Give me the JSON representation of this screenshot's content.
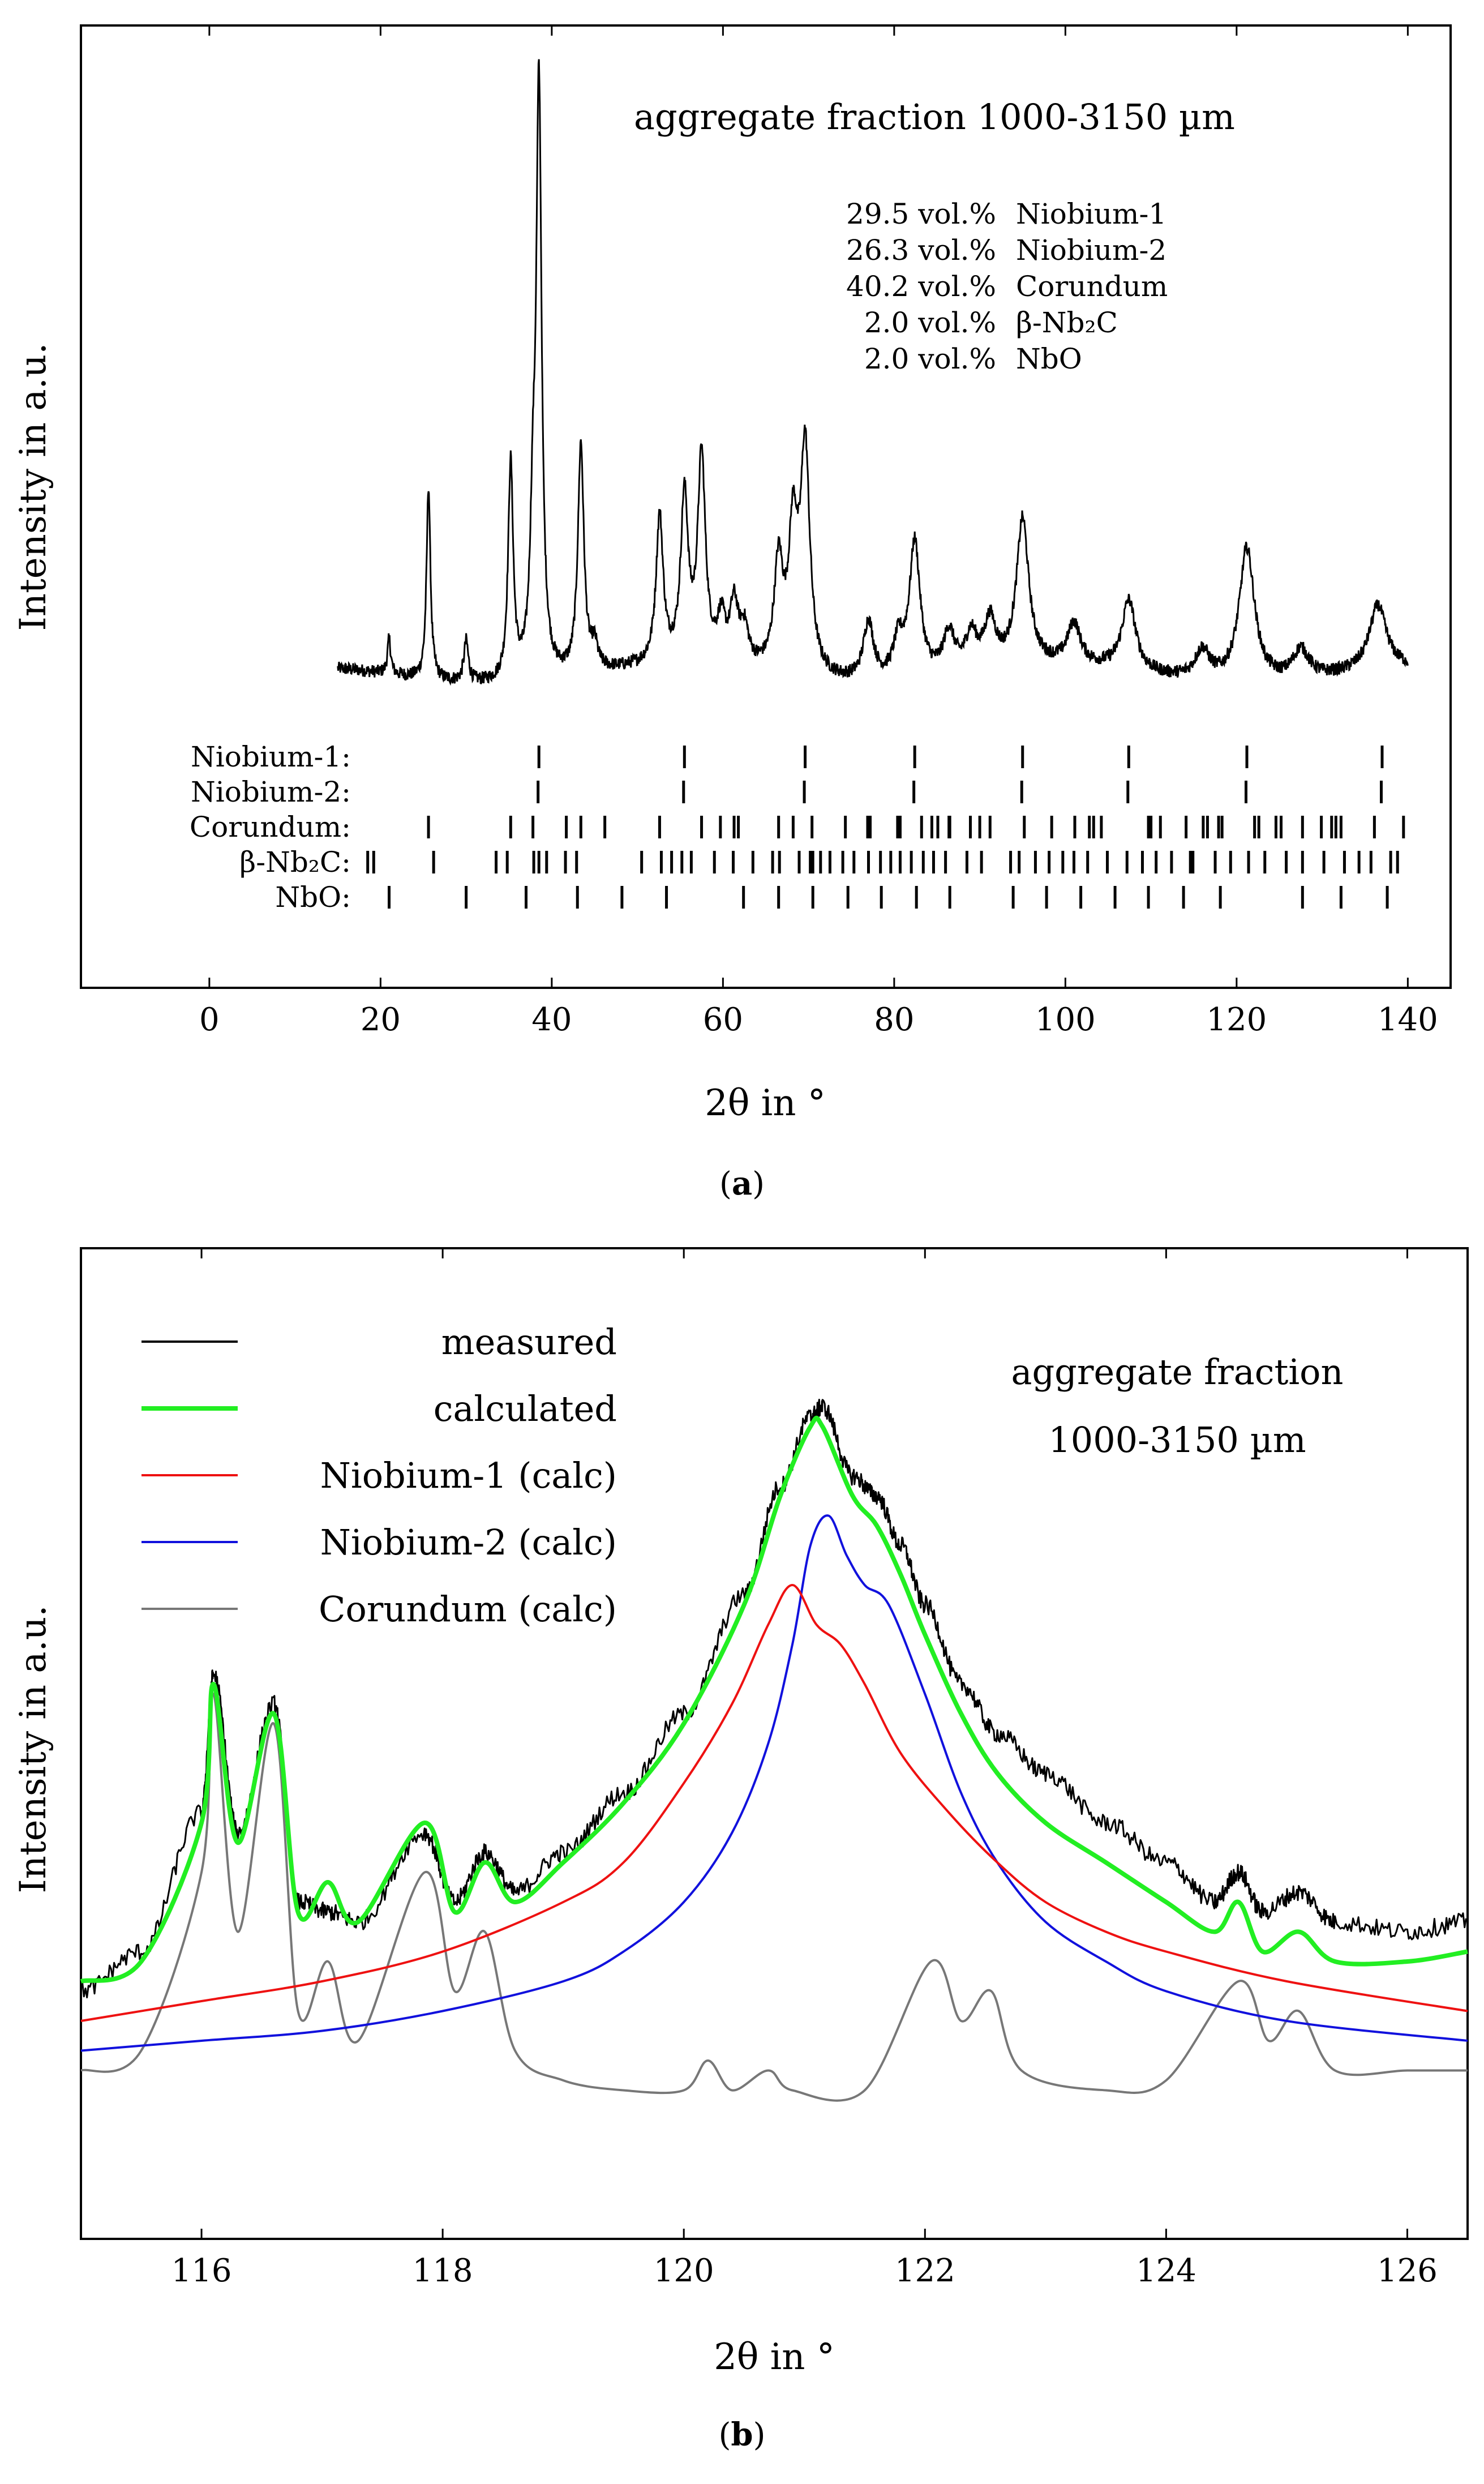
{
  "chart_data": [
    {
      "panel": "a",
      "type": "line",
      "caption_letter": "a",
      "annotation": "aggregate fraction 1000-3150 µm",
      "xlabel": "2θ in °",
      "ylabel": "Intensity in a.u.",
      "xlim": [
        -15,
        145
      ],
      "xticks": [
        0,
        20,
        40,
        60,
        80,
        100,
        120,
        140
      ],
      "x_range_measured": [
        15,
        140
      ],
      "composition": [
        {
          "value": "29.5 vol.%",
          "phase": "Niobium-1"
        },
        {
          "value": "26.3 vol.%",
          "phase": "Niobium-2"
        },
        {
          "value": "40.2 vol.%",
          "phase": "Corundum"
        },
        {
          "value": "2.0 vol.%",
          "phase": "β-Nb₂C"
        },
        {
          "value": "2.0 vol.%",
          "phase": "NbO"
        }
      ],
      "peaks": [
        {
          "x": 21.0,
          "h": 0.06
        },
        {
          "x": 25.6,
          "h": 0.33
        },
        {
          "x": 30.0,
          "h": 0.07
        },
        {
          "x": 35.2,
          "h": 0.37
        },
        {
          "x": 37.8,
          "h": 0.22
        },
        {
          "x": 38.5,
          "h": 1.0
        },
        {
          "x": 43.4,
          "h": 0.39
        },
        {
          "x": 45.0,
          "h": 0.04
        },
        {
          "x": 52.6,
          "h": 0.25
        },
        {
          "x": 55.5,
          "h": 0.28
        },
        {
          "x": 57.5,
          "h": 0.35
        },
        {
          "x": 59.8,
          "h": 0.07
        },
        {
          "x": 61.3,
          "h": 0.1
        },
        {
          "x": 62.5,
          "h": 0.06
        },
        {
          "x": 66.5,
          "h": 0.18
        },
        {
          "x": 68.2,
          "h": 0.23
        },
        {
          "x": 69.6,
          "h": 0.38
        },
        {
          "x": 77.0,
          "h": 0.1
        },
        {
          "x": 80.5,
          "h": 0.06
        },
        {
          "x": 82.4,
          "h": 0.23
        },
        {
          "x": 86.4,
          "h": 0.07
        },
        {
          "x": 89.0,
          "h": 0.06
        },
        {
          "x": 91.2,
          "h": 0.08
        },
        {
          "x": 95.0,
          "h": 0.25
        },
        {
          "x": 101.0,
          "h": 0.07
        },
        {
          "x": 107.4,
          "h": 0.12
        },
        {
          "x": 116.0,
          "h": 0.05
        },
        {
          "x": 121.2,
          "h": 0.23
        },
        {
          "x": 127.5,
          "h": 0.05
        },
        {
          "x": 136.5,
          "h": 0.11
        }
      ],
      "reflections": [
        {
          "name": "Niobium-1:",
          "positions": [
            38.5,
            55.5,
            69.6,
            82.4,
            95.0,
            107.4,
            121.2,
            137.0
          ]
        },
        {
          "name": "Niobium-2:",
          "positions": [
            38.4,
            55.4,
            69.5,
            82.3,
            94.9,
            107.3,
            121.1,
            136.9
          ]
        },
        {
          "name": "Corundum:",
          "positions": [
            25.6,
            35.2,
            37.8,
            41.7,
            43.4,
            46.2,
            52.6,
            57.5,
            59.7,
            61.3,
            61.8,
            66.5,
            68.2,
            70.4,
            74.3,
            76.9,
            77.2,
            80.4,
            80.7,
            83.2,
            84.4,
            85.1,
            86.4,
            86.5,
            88.9,
            90.0,
            91.2,
            95.2,
            98.4,
            101.1,
            102.8,
            103.3,
            104.2,
            109.7,
            110.0,
            111.1,
            114.1,
            116.1,
            116.6,
            117.9,
            118.3,
            122.1,
            122.6,
            124.6,
            125.2,
            127.7,
            129.9,
            131.1,
            131.6,
            132.2,
            136.1,
            139.5
          ]
        },
        {
          "name": "β-Nb₂C:",
          "positions": [
            18.5,
            19.2,
            26.2,
            33.5,
            34.8,
            37.9,
            38.5,
            39.4,
            41.6,
            42.9,
            50.5,
            52.8,
            54.0,
            55.2,
            56.3,
            59.0,
            61.2,
            63.5,
            65.8,
            66.6,
            68.9,
            70.2,
            70.5,
            71.4,
            72.5,
            74.0,
            75.3,
            77.0,
            78.4,
            79.6,
            80.7,
            82.0,
            83.4,
            84.6,
            86.0,
            88.5,
            90.2,
            93.6,
            94.6,
            96.5,
            98.1,
            99.7,
            101.0,
            102.6,
            104.9,
            107.2,
            109.0,
            110.6,
            112.4,
            114.6,
            114.9,
            117.5,
            119.3,
            121.4,
            123.3,
            125.8,
            127.7,
            130.2,
            132.6,
            134.3,
            135.7,
            138.0,
            138.8
          ]
        },
        {
          "name": "NbO:",
          "positions": [
            21.0,
            30.0,
            37.0,
            43.0,
            48.2,
            53.4,
            62.4,
            66.5,
            70.5,
            74.6,
            78.5,
            82.6,
            86.5,
            93.9,
            97.8,
            101.8,
            105.8,
            109.7,
            113.8,
            118.1,
            127.7,
            132.2,
            137.6
          ]
        }
      ]
    },
    {
      "panel": "b",
      "type": "line",
      "caption_letter": "b",
      "annotation_line1": "aggregate fraction",
      "annotation_line2": "1000-3150 µm",
      "xlabel": "2θ in °",
      "ylabel": "Intensity in a.u.",
      "xlim": [
        115,
        126.5
      ],
      "xticks": [
        116,
        118,
        120,
        122,
        124,
        126
      ],
      "ylim": [
        0,
        1
      ],
      "series": [
        {
          "name": "measured",
          "color": "#000000",
          "x": [
            115.0,
            115.5,
            116.0,
            116.1,
            116.3,
            116.6,
            116.8,
            117.05,
            117.3,
            117.85,
            118.1,
            118.35,
            118.6,
            119.0,
            119.5,
            120.0,
            120.5,
            120.8,
            121.05,
            121.15,
            121.4,
            121.6,
            121.8,
            122.0,
            122.3,
            122.6,
            123.0,
            123.5,
            124.0,
            124.4,
            124.6,
            124.8,
            125.1,
            125.4,
            126.0,
            126.5
          ],
          "y": [
            0.25,
            0.29,
            0.43,
            0.57,
            0.41,
            0.54,
            0.34,
            0.33,
            0.32,
            0.41,
            0.34,
            0.39,
            0.35,
            0.39,
            0.45,
            0.53,
            0.65,
            0.76,
            0.83,
            0.84,
            0.77,
            0.75,
            0.7,
            0.64,
            0.56,
            0.51,
            0.47,
            0.42,
            0.38,
            0.34,
            0.37,
            0.33,
            0.35,
            0.32,
            0.31,
            0.32
          ]
        },
        {
          "name": "calculated",
          "color": "#22ee22",
          "x": [
            115.0,
            115.5,
            116.0,
            116.1,
            116.3,
            116.6,
            116.8,
            117.05,
            117.3,
            117.85,
            118.1,
            118.35,
            118.6,
            119.0,
            119.5,
            120.0,
            120.5,
            120.8,
            121.05,
            121.15,
            121.4,
            121.6,
            121.8,
            122.0,
            122.3,
            122.6,
            123.0,
            123.5,
            124.0,
            124.4,
            124.6,
            124.8,
            125.1,
            125.4,
            126.0,
            126.5
          ],
          "y": [
            0.26,
            0.28,
            0.42,
            0.56,
            0.4,
            0.53,
            0.33,
            0.36,
            0.32,
            0.42,
            0.33,
            0.38,
            0.34,
            0.38,
            0.44,
            0.52,
            0.64,
            0.75,
            0.82,
            0.82,
            0.75,
            0.72,
            0.67,
            0.61,
            0.53,
            0.47,
            0.42,
            0.38,
            0.34,
            0.31,
            0.34,
            0.29,
            0.31,
            0.28,
            0.28,
            0.29
          ]
        },
        {
          "name": "Niobium-1 (calc)",
          "color": "#ee1111",
          "x": [
            115.0,
            116.0,
            117.0,
            118.0,
            119.0,
            119.5,
            120.0,
            120.4,
            120.7,
            120.9,
            121.1,
            121.3,
            121.5,
            121.8,
            122.2,
            122.6,
            123.0,
            123.5,
            124.0,
            125.0,
            126.5
          ],
          "y": [
            0.22,
            0.24,
            0.26,
            0.29,
            0.34,
            0.38,
            0.46,
            0.54,
            0.62,
            0.66,
            0.62,
            0.6,
            0.56,
            0.49,
            0.43,
            0.38,
            0.34,
            0.31,
            0.29,
            0.26,
            0.23
          ]
        },
        {
          "name": "Niobium-2 (calc)",
          "color": "#1111dd",
          "x": [
            115.0,
            116.0,
            117.0,
            118.0,
            119.0,
            119.5,
            120.0,
            120.4,
            120.7,
            120.9,
            121.05,
            121.2,
            121.35,
            121.5,
            121.7,
            122.0,
            122.3,
            122.6,
            123.0,
            123.5,
            124.0,
            125.0,
            126.5
          ],
          "y": [
            0.19,
            0.2,
            0.21,
            0.23,
            0.26,
            0.29,
            0.34,
            0.41,
            0.5,
            0.6,
            0.7,
            0.73,
            0.69,
            0.66,
            0.64,
            0.55,
            0.45,
            0.38,
            0.32,
            0.28,
            0.25,
            0.22,
            0.2
          ]
        },
        {
          "name": "Corundum (calc)",
          "color": "#777777",
          "x": [
            115.0,
            115.5,
            116.0,
            116.1,
            116.3,
            116.6,
            116.8,
            117.05,
            117.3,
            117.85,
            118.1,
            118.35,
            118.6,
            119.0,
            119.5,
            120.0,
            120.2,
            120.4,
            120.7,
            120.9,
            121.5,
            122.05,
            122.3,
            122.55,
            122.8,
            123.5,
            124.0,
            124.6,
            124.85,
            125.1,
            125.4,
            126.0,
            126.5
          ],
          "y": [
            0.17,
            0.19,
            0.37,
            0.55,
            0.31,
            0.52,
            0.23,
            0.28,
            0.2,
            0.37,
            0.25,
            0.31,
            0.19,
            0.16,
            0.15,
            0.15,
            0.18,
            0.15,
            0.17,
            0.15,
            0.15,
            0.28,
            0.22,
            0.25,
            0.17,
            0.15,
            0.16,
            0.26,
            0.2,
            0.23,
            0.17,
            0.17,
            0.17
          ]
        }
      ]
    }
  ]
}
